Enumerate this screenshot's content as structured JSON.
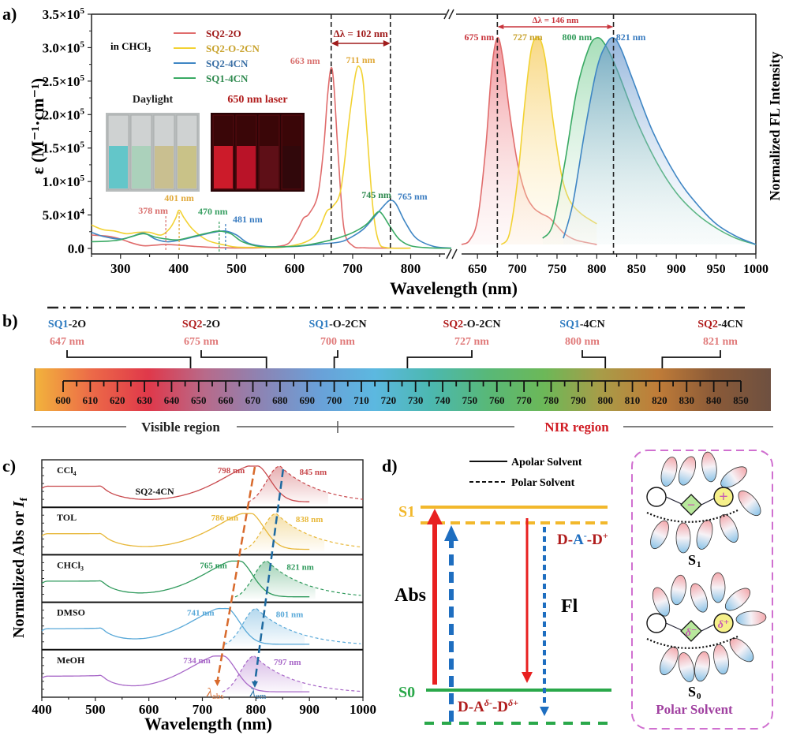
{
  "chart_data": [
    {
      "panel": "a",
      "panel_label": "a)",
      "type": "line",
      "title": "",
      "xlabel": "Wavelength (nm)",
      "ylabel_left": "ε (M⁻¹·cm⁻¹)",
      "ylabel_right": "Normalized FL Intensity",
      "solvent_note": "in CHCl3",
      "left_axis": {
        "xlim": [
          250,
          870
        ],
        "xticks": [
          300,
          400,
          500,
          600,
          700,
          800
        ],
        "ylim": [
          0,
          350000
        ],
        "yticks": [
          {
            "v": 0,
            "label": "0.0"
          },
          {
            "v": 50000,
            "label": "5.0×10⁴"
          },
          {
            "v": 100000,
            "label": "1.0×10⁵"
          },
          {
            "v": 150000,
            "label": "1.5×10⁵"
          },
          {
            "v": 200000,
            "label": "2.0×10⁵"
          },
          {
            "v": 250000,
            "label": "2.5×10⁵"
          },
          {
            "v": 300000,
            "label": "3.0×10⁵"
          },
          {
            "v": 350000,
            "label": "3.5×10⁵"
          }
        ]
      },
      "right_axis": {
        "xlim": [
          630,
          1000
        ],
        "xticks": [
          650,
          700,
          750,
          800,
          850,
          900,
          950,
          1000
        ],
        "ylim": [
          0,
          1.05
        ]
      },
      "legend": [
        {
          "name": "SQ2-2O",
          "color": "#e06c6c",
          "text_color": "#a01c1c"
        },
        {
          "name": "SQ2-O-2CN",
          "color": "#f2d233",
          "text_color": "#c8a22c"
        },
        {
          "name": "SQ2-4CN",
          "color": "#3f86c4",
          "text_color": "#3a6fa5"
        },
        {
          "name": "SQ1-4CN",
          "color": "#3aaa64",
          "text_color": "#2f8a4f"
        }
      ],
      "absorption_series": [
        {
          "name": "SQ2-2O",
          "color": "#e06c6c",
          "x": [
            250,
            280,
            300,
            320,
            340,
            360,
            378,
            400,
            430,
            460,
            500,
            540,
            570,
            590,
            605,
            615,
            625,
            640,
            650,
            657,
            663,
            668,
            675,
            685,
            700,
            720,
            750,
            800
          ],
          "y": [
            20000,
            18000,
            14000,
            8000,
            4000,
            5000,
            6000,
            5000,
            3000,
            1500,
            700,
            1000,
            3000,
            8000,
            28000,
            45000,
            52000,
            80000,
            150000,
            230000,
            270000,
            240000,
            140000,
            30000,
            4000,
            1000,
            500,
            300
          ]
        },
        {
          "name": "SQ2-O-2CN",
          "color": "#f2d233",
          "x": [
            250,
            270,
            290,
            310,
            330,
            350,
            370,
            385,
            395,
            401,
            410,
            425,
            450,
            480,
            500,
            540,
            580,
            620,
            640,
            655,
            665,
            680,
            695,
            705,
            711,
            718,
            725,
            735,
            745,
            760,
            800
          ],
          "y": [
            35000,
            28000,
            26000,
            22000,
            24000,
            24000,
            20000,
            30000,
            45000,
            57000,
            45000,
            28000,
            12000,
            5000,
            2000,
            1500,
            2000,
            10000,
            25000,
            55000,
            62000,
            90000,
            200000,
            260000,
            272000,
            250000,
            170000,
            60000,
            10000,
            1000,
            300
          ]
        },
        {
          "name": "SQ2-4CN",
          "color": "#3f86c4",
          "x": [
            250,
            270,
            300,
            320,
            340,
            360,
            380,
            400,
            430,
            460,
            481,
            500,
            520,
            550,
            600,
            650,
            680,
            700,
            720,
            740,
            755,
            765,
            775,
            790,
            810,
            840,
            870
          ],
          "y": [
            24000,
            18000,
            14000,
            18000,
            23000,
            14000,
            10000,
            12000,
            18000,
            24000,
            26000,
            20000,
            8000,
            3000,
            3000,
            7000,
            10000,
            18000,
            30000,
            50000,
            65000,
            72000,
            66000,
            40000,
            15000,
            3000,
            500
          ]
        },
        {
          "name": "SQ1-4CN",
          "color": "#3aaa64",
          "x": [
            250,
            280,
            300,
            320,
            340,
            360,
            380,
            400,
            430,
            455,
            470,
            490,
            510,
            540,
            580,
            620,
            660,
            690,
            710,
            725,
            738,
            745,
            752,
            765,
            780,
            800,
            830,
            870
          ],
          "y": [
            10000,
            11000,
            13000,
            18000,
            22000,
            17000,
            14000,
            13000,
            19000,
            24000,
            26000,
            22000,
            10000,
            3000,
            2500,
            5000,
            12000,
            20000,
            28000,
            37000,
            50000,
            55000,
            50000,
            32000,
            14000,
            4000,
            1000,
            200
          ]
        }
      ],
      "absorption_peak_labels": [
        {
          "text": "378 nm",
          "x": 378,
          "color": "#d9706e"
        },
        {
          "text": "401 nm",
          "x": 401,
          "color": "#e0a93a"
        },
        {
          "text": "470 nm",
          "x": 470,
          "color": "#3aa063"
        },
        {
          "text": "481 nm",
          "x": 481,
          "color": "#3a7cc0"
        },
        {
          "text": "663 nm",
          "x": 663,
          "color": "#d9706e"
        },
        {
          "text": "711 nm",
          "x": 711,
          "color": "#e0a93a"
        },
        {
          "text": "745 nm",
          "x": 745,
          "color": "#2f8a4f"
        },
        {
          "text": "765 nm",
          "x": 765,
          "color": "#3a7cc0"
        }
      ],
      "absorption_shift_annotation": "Δλ = 102 nm",
      "absorption_shift_range": [
        663,
        765
      ],
      "emission_series": [
        {
          "name": "SQ2-2O",
          "color": "#e06c6c",
          "x": [
            630,
            640,
            650,
            660,
            668,
            675,
            682,
            690,
            700,
            710,
            720,
            730,
            740,
            750,
            760,
            775,
            800
          ],
          "y": [
            0.0,
            0.02,
            0.12,
            0.45,
            0.85,
            1.0,
            0.9,
            0.65,
            0.4,
            0.25,
            0.18,
            0.15,
            0.13,
            0.09,
            0.05,
            0.02,
            0.0
          ]
        },
        {
          "name": "SQ2-O-2CN",
          "color": "#f2d233",
          "x": [
            680,
            690,
            700,
            710,
            718,
            727,
            735,
            745,
            755,
            765,
            780,
            800
          ],
          "y": [
            0.0,
            0.05,
            0.3,
            0.7,
            0.95,
            1.0,
            0.9,
            0.6,
            0.35,
            0.22,
            0.15,
            0.1
          ]
        },
        {
          "name": "SQ1-4CN",
          "color": "#3aaa64",
          "x": [
            732,
            745,
            760,
            775,
            790,
            800,
            810,
            825,
            850,
            875,
            900,
            925,
            950,
            975,
            1000
          ],
          "y": [
            0.03,
            0.1,
            0.4,
            0.75,
            0.95,
            1.0,
            0.97,
            0.85,
            0.6,
            0.4,
            0.25,
            0.15,
            0.08,
            0.03,
            0.0
          ]
        },
        {
          "name": "SQ2-4CN",
          "color": "#3f86c4",
          "x": [
            758,
            770,
            785,
            800,
            812,
            821,
            830,
            845,
            870,
            900,
            925,
            950,
            975,
            1000
          ],
          "y": [
            0.03,
            0.2,
            0.55,
            0.85,
            0.97,
            1.0,
            0.95,
            0.8,
            0.55,
            0.33,
            0.2,
            0.1,
            0.04,
            0.0
          ]
        }
      ],
      "emission_peak_labels": [
        {
          "text": "675 nm",
          "x": 675,
          "color": "#c8343c"
        },
        {
          "text": "727 nm",
          "x": 727,
          "color": "#c8a22c"
        },
        {
          "text": "800 nm",
          "x": 800,
          "color": "#2f9a58"
        },
        {
          "text": "821 nm",
          "x": 821,
          "color": "#3a7cc0"
        }
      ],
      "emission_shift_annotation": "Δλ = 146 nm",
      "emission_shift_range": [
        675,
        821
      ],
      "inset_photos": [
        {
          "label": "Daylight",
          "label_color": "#222222",
          "vials": [
            "#56c4c8",
            "#a6d0b8",
            "#c8bc88",
            "#c8c080"
          ]
        },
        {
          "label": "650 nm laser",
          "label_color": "#b01c1c",
          "vials": [
            "#d41c2c",
            "#c0142a",
            "#601018",
            "#30080c"
          ]
        }
      ]
    },
    {
      "panel": "b",
      "panel_label": "b)",
      "type": "scale",
      "scale": {
        "min": 600,
        "max": 850,
        "major_step": 10,
        "ticks": [
          600,
          610,
          620,
          630,
          640,
          650,
          660,
          670,
          680,
          690,
          700,
          710,
          720,
          730,
          740,
          750,
          760,
          770,
          780,
          790,
          800,
          810,
          820,
          830,
          840,
          850
        ]
      },
      "gradient_stops": [
        "#f2b43c",
        "#ec6a48",
        "#e0384a",
        "#b86a8a",
        "#8c84b4",
        "#6aa0d8",
        "#5cb8e0",
        "#4cb8b0",
        "#58b878",
        "#6cb858",
        "#a89c48",
        "#c07c38",
        "#8a5a38",
        "#6e5040"
      ],
      "markers": [
        {
          "prefix": "SQ1",
          "suffix": "-2O",
          "prefix_color": "#2c7ac0",
          "wavelength": "647 nm",
          "value": 647
        },
        {
          "prefix": "SQ2",
          "suffix": "-2O",
          "prefix_color": "#b01c1c",
          "wavelength": "675 nm",
          "value": 675
        },
        {
          "prefix": "SQ1",
          "suffix": "-O-2CN",
          "prefix_color": "#2c7ac0",
          "wavelength": "700 nm",
          "value": 700
        },
        {
          "prefix": "SQ2",
          "suffix": "-O-2CN",
          "prefix_color": "#b01c1c",
          "wavelength": "727 nm",
          "value": 727
        },
        {
          "prefix": "SQ1",
          "suffix": "-4CN",
          "prefix_color": "#2c7ac0",
          "wavelength": "800 nm",
          "value": 800
        },
        {
          "prefix": "SQ2",
          "suffix": "-4CN",
          "prefix_color": "#b01c1c",
          "wavelength": "821 nm",
          "value": 821
        }
      ],
      "wavelength_color": "#e07a7a",
      "regions": [
        {
          "label": "Visible region",
          "color": "#222222"
        },
        {
          "label": "NIR region",
          "color": "#d01c24"
        }
      ]
    },
    {
      "panel": "c",
      "panel_label": "c)",
      "type": "line",
      "compound": "SQ2-4CN",
      "xlabel": "Wavelength (nm)",
      "ylabel": "Normalized Abs or I_f",
      "xlim": [
        400,
        1000
      ],
      "xticks": [
        400,
        500,
        600,
        700,
        800,
        900,
        1000
      ],
      "series": [
        {
          "solvent": "CCl4",
          "color": "#c8484c",
          "abs_peak": 798,
          "em_peak": 845,
          "abs_label": "798 nm",
          "em_label": "845 nm"
        },
        {
          "solvent": "TOL",
          "color": "#e8b83a",
          "abs_peak": 786,
          "em_peak": 838,
          "abs_label": "786 nm",
          "em_label": "838 nm"
        },
        {
          "solvent": "CHCl3",
          "color": "#2f9a5c",
          "abs_peak": 765,
          "em_peak": 821,
          "abs_label": "765 nm",
          "em_label": "821 nm"
        },
        {
          "solvent": "DMSO",
          "color": "#58a8d8",
          "abs_peak": 741,
          "em_peak": 801,
          "abs_label": "741 nm",
          "em_label": "801 nm"
        },
        {
          "solvent": "MeOH",
          "color": "#a868c8",
          "abs_peak": 734,
          "em_peak": 797,
          "abs_label": "734 nm",
          "em_label": "797 nm"
        }
      ],
      "trend_labels": {
        "abs": "λabs",
        "em": "λem",
        "abs_color": "#d86a2c",
        "em_color": "#1e6aa0"
      }
    }
  ],
  "diagram_d": {
    "panel_label": "d)",
    "legend": [
      {
        "style": "solid",
        "label": "Apolar Solvent"
      },
      {
        "style": "dashed",
        "label": "Polar Solvent"
      }
    ],
    "levels": {
      "s1": "S1",
      "s0": "S0",
      "s1_color": "#f2b82c",
      "s0_color": "#2aa84a"
    },
    "transitions": {
      "abs": "Abs",
      "fl": "Fl"
    },
    "species": {
      "excited": "D-A⁻-D⁺",
      "ground": "D-Aᵟ⁻-Dᵟ⁺"
    },
    "colors": {
      "apolar_arrow": "#e82020",
      "polar_arrow": "#1e6ec0",
      "species_d": "#b01c1c",
      "species_a": "#1e6ec0"
    },
    "solvation_box": {
      "title": "Polar Solvent",
      "title_color": "#a040a0",
      "border_color": "#d070d0",
      "top_state": "S1",
      "bottom_state": "S0",
      "top_charges": [
        "−",
        "+"
      ],
      "bottom_charges": [
        "δ⁻",
        "δ⁺"
      ]
    }
  }
}
